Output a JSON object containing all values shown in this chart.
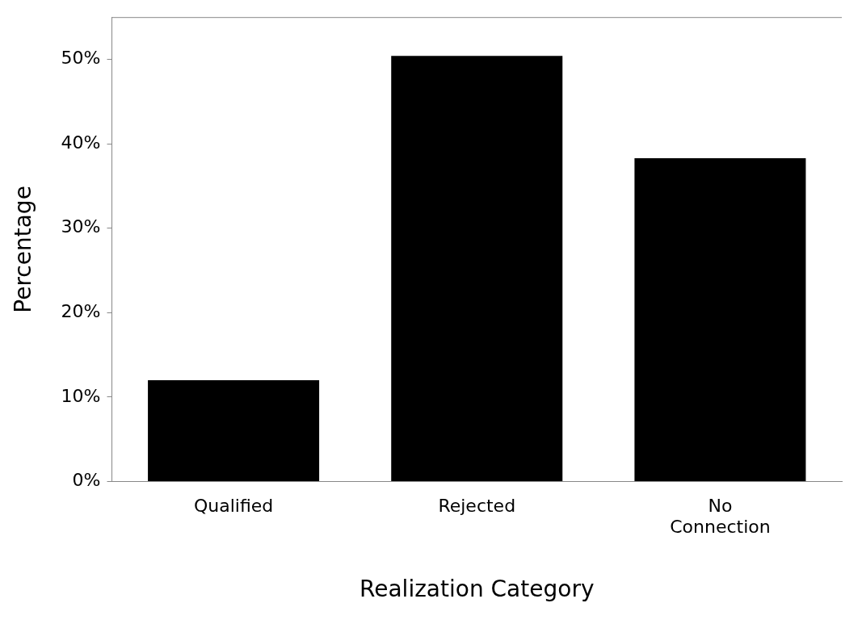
{
  "chart_data": {
    "type": "bar",
    "xlabel": "Realization Category",
    "ylabel": "Percentage",
    "categories": [
      "Qualified",
      "Rejected",
      "No Connection"
    ],
    "values": [
      12.0,
      50.4,
      38.3
    ],
    "color": "#000000",
    "ylim": [
      0,
      55
    ],
    "yticks": [
      {
        "value": 0,
        "label": "0%"
      },
      {
        "value": 10,
        "label": "10%"
      },
      {
        "value": 20,
        "label": "20%"
      },
      {
        "value": 30,
        "label": "30%"
      },
      {
        "value": 40,
        "label": "40%"
      },
      {
        "value": 50,
        "label": "50%"
      }
    ],
    "grid": false,
    "legend": false
  }
}
